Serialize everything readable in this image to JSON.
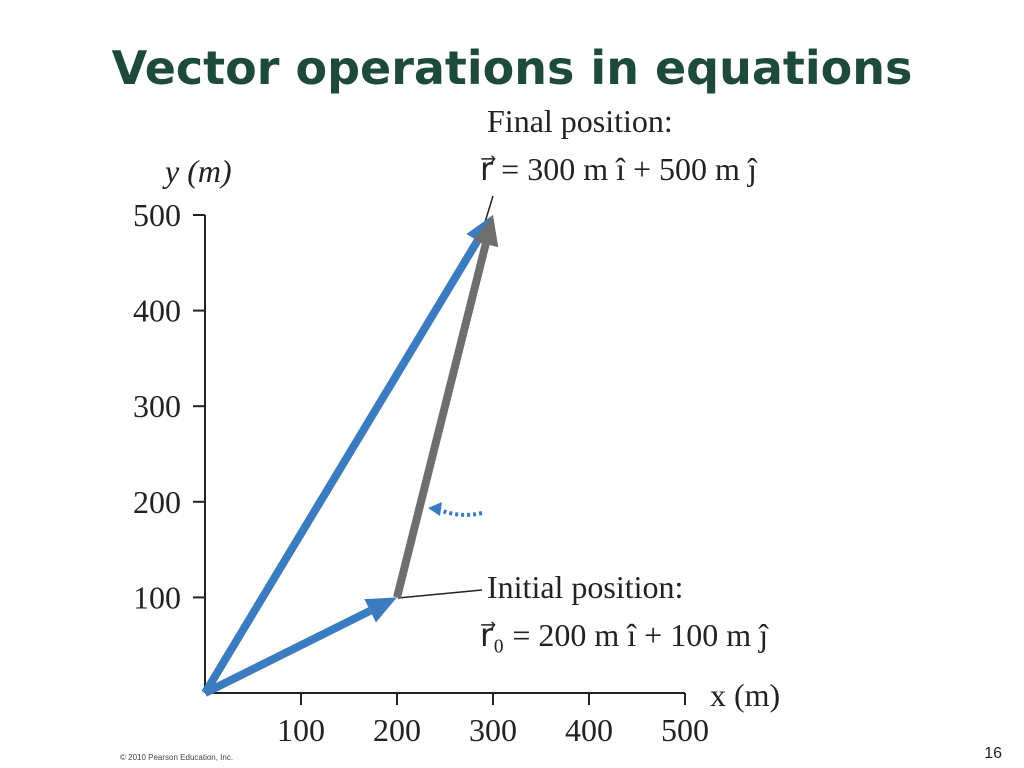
{
  "title": "Vector operations in equations",
  "diagram": {
    "x_label": "x (m)",
    "y_label": "y (m)",
    "xlim": [
      0,
      500
    ],
    "ylim": [
      0,
      500
    ],
    "xticks": [
      100,
      200,
      300,
      400,
      500
    ],
    "yticks": [
      100,
      200,
      300,
      400,
      500
    ],
    "vectors": [
      {
        "from": [
          0,
          0
        ],
        "to": [
          200,
          100
        ],
        "color": "#3b7cc0"
      },
      {
        "from": [
          0,
          0
        ],
        "to": [
          300,
          500
        ],
        "color": "#3b7cc0"
      },
      {
        "from": [
          200,
          100
        ],
        "to": [
          300,
          500
        ],
        "color": "#6e6e6e"
      }
    ],
    "final_label": "Final position:",
    "final_equation": "r⃗ = 300 m î + 500 m ĵ",
    "initial_label": "Initial position:",
    "initial_equation": "r⃗₀ = 200 m î + 100 m ĵ"
  },
  "footer": "© 2010 Pearson Education, Inc.",
  "page_number": "16"
}
